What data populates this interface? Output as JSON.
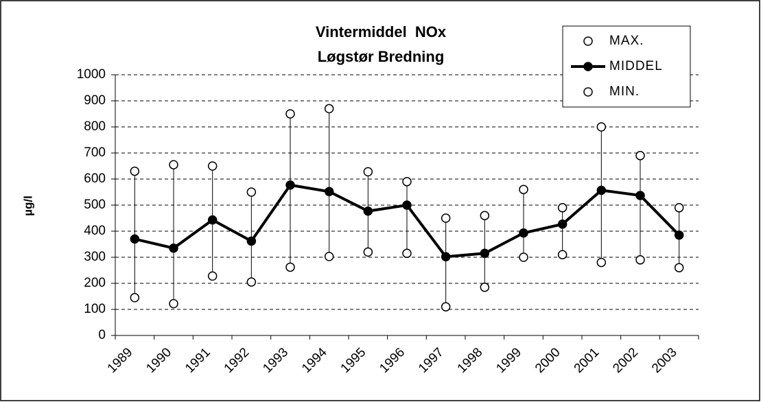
{
  "chart_data": {
    "type": "line",
    "title": "Vintermiddel  NOx",
    "subtitle": "Løgstør Bredning",
    "y_label": "µg/l",
    "categories": [
      "1989",
      "1990",
      "1991",
      "1992",
      "1993",
      "1994",
      "1995",
      "1996",
      "1997",
      "1998",
      "1999",
      "2000",
      "2001",
      "2002",
      "2003"
    ],
    "series": [
      {
        "name": "MAX.",
        "color": "#ffffff",
        "values": [
          630,
          655,
          650,
          550,
          850,
          870,
          628,
          590,
          450,
          460,
          560,
          490,
          800,
          690,
          490
        ]
      },
      {
        "name": "MIDDEL",
        "color": "#000000",
        "values": [
          370,
          335,
          443,
          362,
          577,
          552,
          477,
          500,
          302,
          315,
          393,
          427,
          557,
          537,
          385
        ]
      },
      {
        "name": "MIN.",
        "color": "#ffffff",
        "values": [
          145,
          122,
          228,
          205,
          262,
          303,
          320,
          315,
          110,
          185,
          300,
          310,
          280,
          290,
          260
        ]
      }
    ],
    "ylim": [
      0,
      1000
    ],
    "yticks": [
      0,
      100,
      200,
      300,
      400,
      500,
      600,
      700,
      800,
      900,
      1000
    ],
    "grid": true,
    "legend": "top-right"
  }
}
